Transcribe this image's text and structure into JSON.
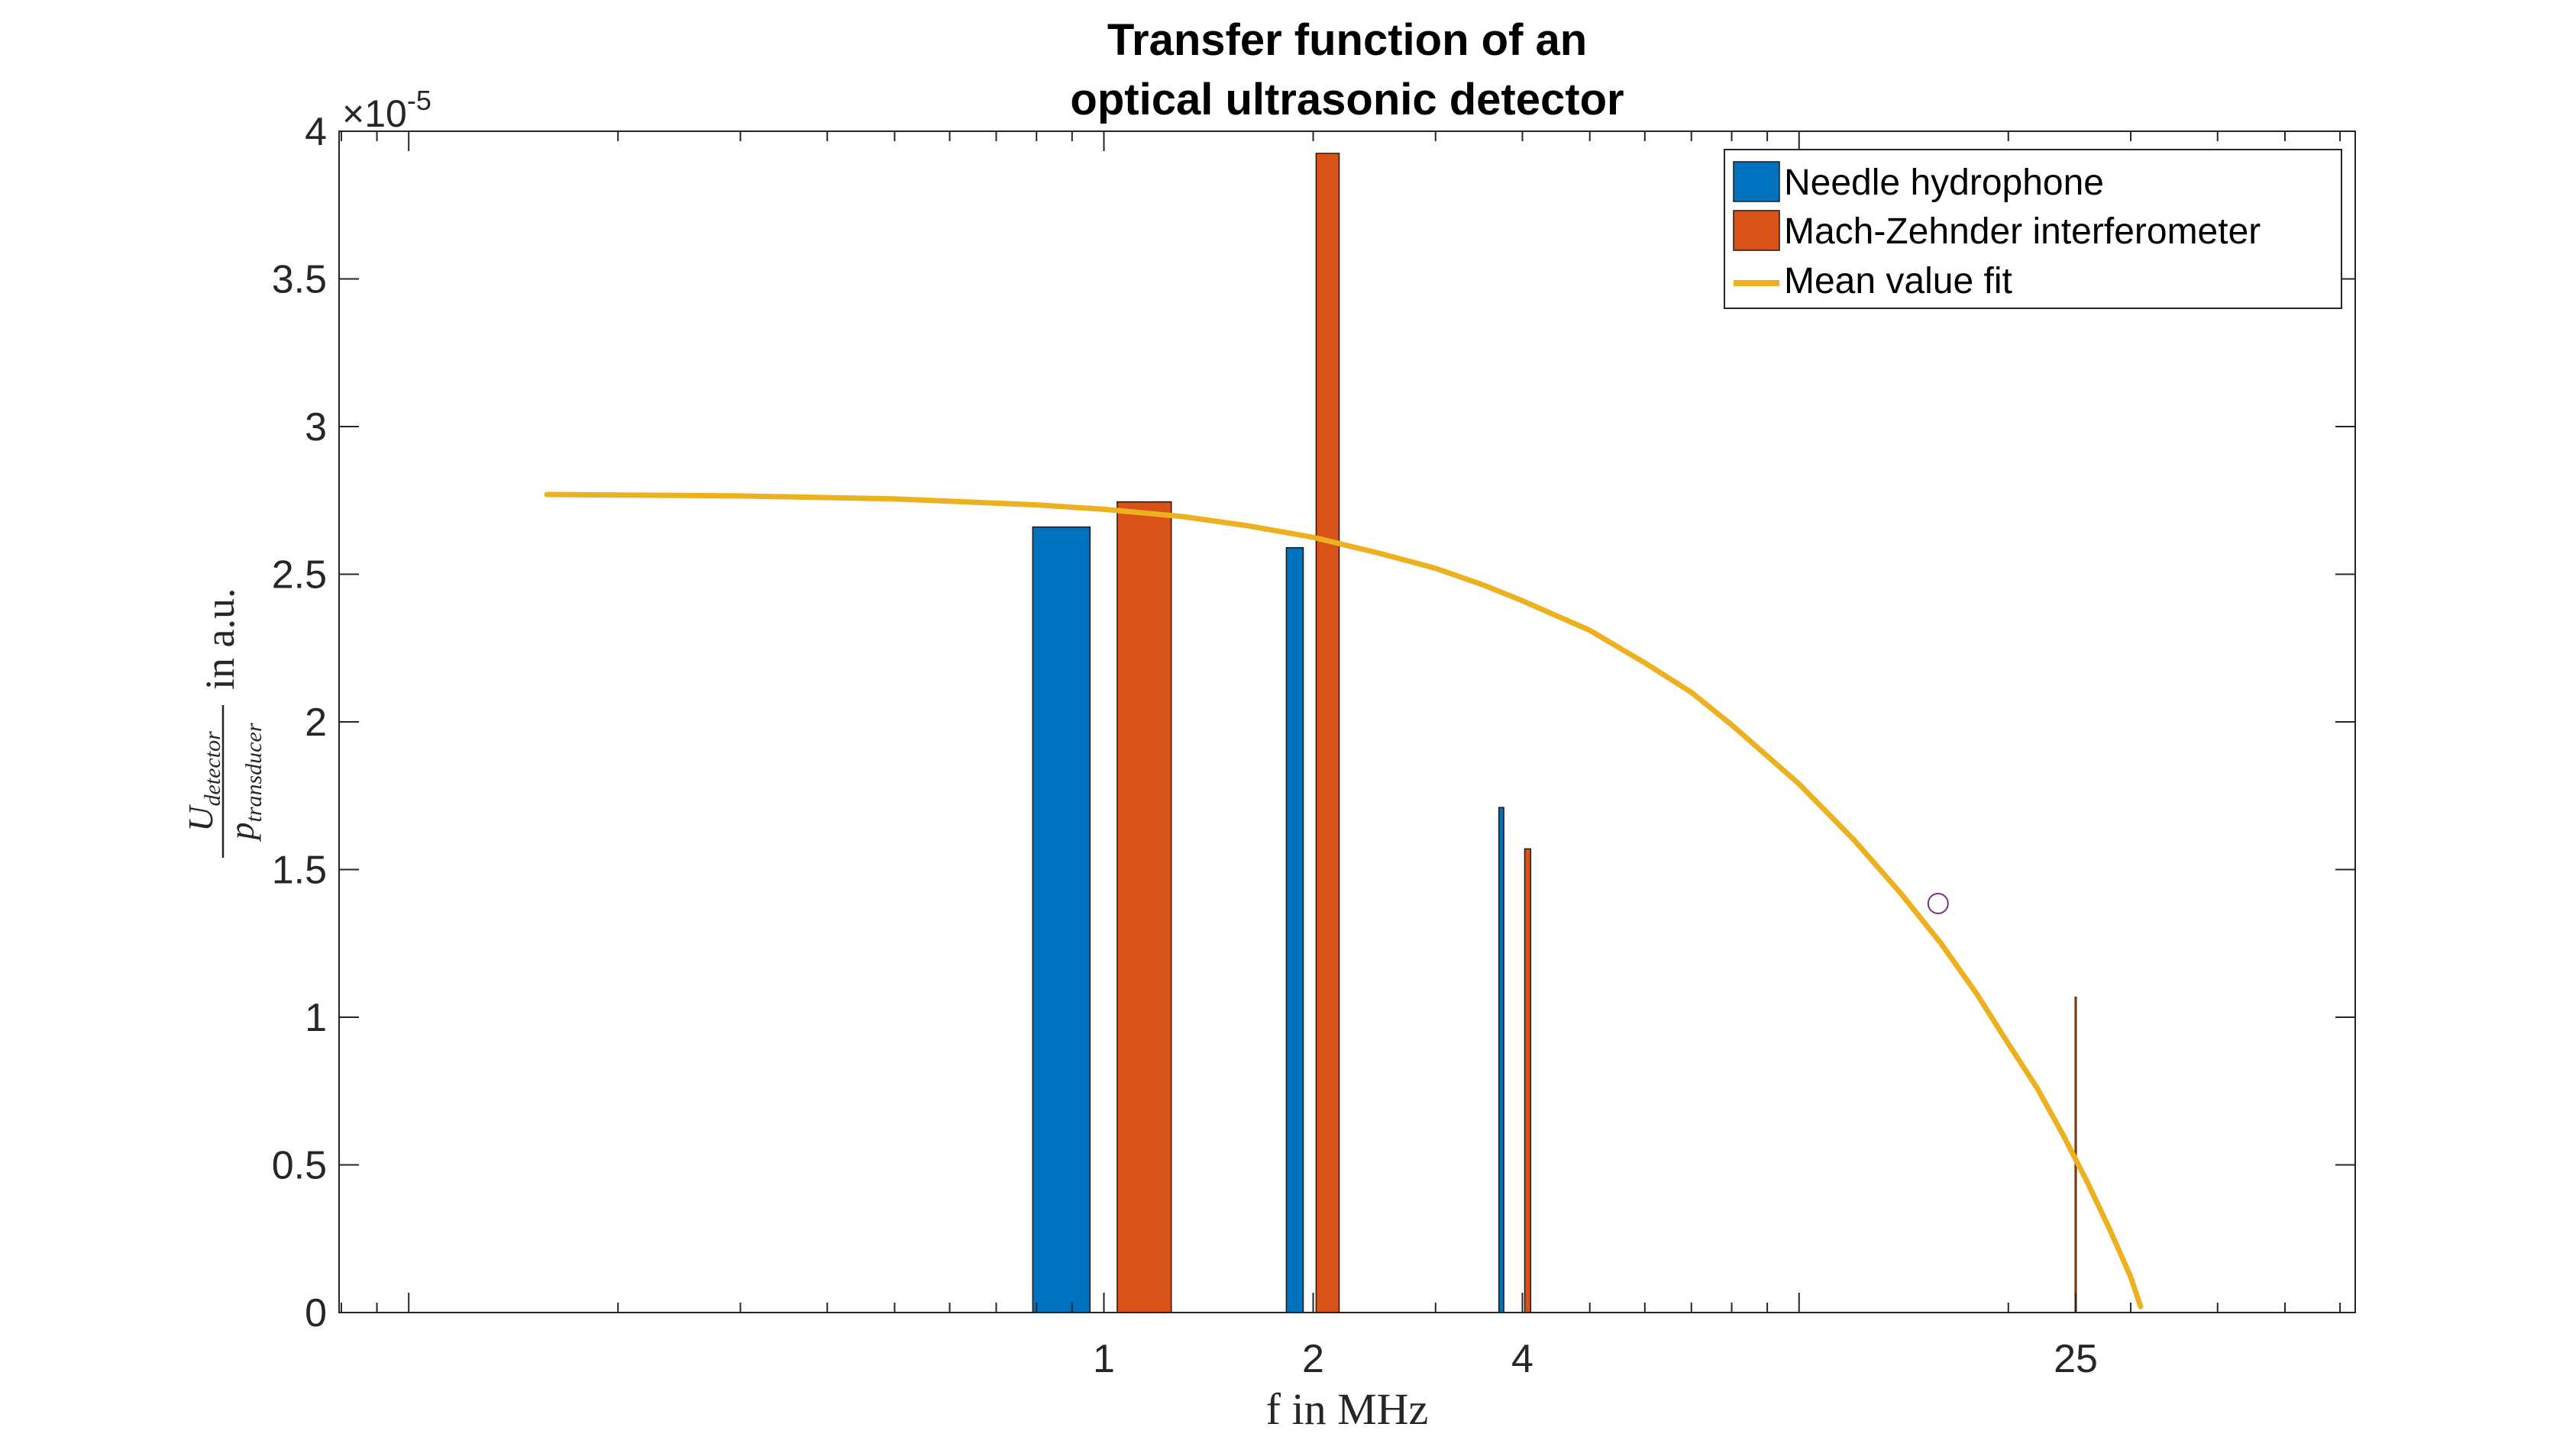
{
  "chart_data": {
    "type": "bar",
    "title_lines": [
      "Transfer function of an",
      "optical ultrasonic detector"
    ],
    "xlabel": "f in MHz",
    "ylabel": {
      "numerator": "U",
      "numerator_sub": "detector",
      "denominator": "p",
      "denominator_sub": "transducer",
      "suffix": "in a.u."
    },
    "x_scale": "log",
    "xlim": [
      0.0794,
      63.1
    ],
    "x_ticks": [
      1,
      2,
      4,
      25
    ],
    "x_tick_labels": [
      "1",
      "2",
      "4",
      "25"
    ],
    "ylim": [
      0,
      4e-05
    ],
    "y_ticks": [
      0,
      5e-06,
      1e-05,
      1.5e-05,
      2e-05,
      2.5e-05,
      3e-05,
      3.5e-05,
      4e-05
    ],
    "y_tick_labels": [
      "0",
      "0.5",
      "1",
      "1.5",
      "2",
      "2.5",
      "3",
      "3.5",
      "4"
    ],
    "y_exponent": {
      "base": "×10",
      "power": "-5"
    },
    "grid": false,
    "legend_position": "top-right",
    "colors": {
      "needle": "#0072BD",
      "mzi": "#D95319",
      "fit": "#EDB120"
    },
    "series": [
      {
        "name": "Needle hydrophone",
        "kind": "bar",
        "bars": [
          {
            "x0": 0.79,
            "x1": 0.955,
            "y": 2.66e-05
          },
          {
            "x0": 1.83,
            "x1": 1.935,
            "y": 2.59e-05
          },
          {
            "x0": 3.7,
            "x1": 3.76,
            "y": 1.71e-05
          }
        ]
      },
      {
        "name": "Mach-Zehnder interferometer",
        "kind": "bar",
        "bars": [
          {
            "x0": 1.045,
            "x1": 1.25,
            "y": 2.745e-05
          },
          {
            "x0": 2.02,
            "x1": 2.18,
            "y": 3.925e-05
          },
          {
            "x0": 4.03,
            "x1": 4.11,
            "y": 1.57e-05
          },
          {
            "x0": 24.9,
            "x1": 25.1,
            "y": 1.07e-05
          }
        ]
      },
      {
        "name": "Mean value fit",
        "kind": "line",
        "x": [
          0.158,
          0.3,
          0.5,
          0.8,
          1.0,
          1.3,
          1.6,
          2.0,
          2.5,
          3.0,
          3.5,
          4.0,
          5.0,
          6.0,
          7.0,
          8.0,
          10.0,
          12.0,
          14.0,
          16.0,
          18.0,
          20.0,
          22.0,
          24.0,
          26.0,
          28.0,
          30.0,
          31.0
        ],
        "y": [
          2.77e-05,
          2.765e-05,
          2.755e-05,
          2.735e-05,
          2.72e-05,
          2.695e-05,
          2.665e-05,
          2.625e-05,
          2.57e-05,
          2.52e-05,
          2.465e-05,
          2.41e-05,
          2.31e-05,
          2.2e-05,
          2.1e-05,
          1.99e-05,
          1.79e-05,
          1.6e-05,
          1.42e-05,
          1.25e-05,
          1.08e-05,
          9.1e-06,
          7.6e-06,
          6e-06,
          4.4e-06,
          2.8e-06,
          1.2e-06,
          2e-07
        ]
      }
    ],
    "annotations": [
      {
        "type": "circle-marker",
        "x": 15.85,
        "y": 1.385e-05,
        "color": "#7E2F8E"
      }
    ]
  }
}
